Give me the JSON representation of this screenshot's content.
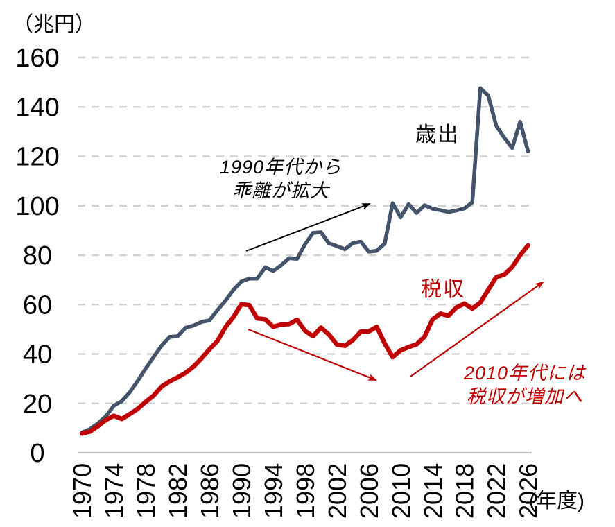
{
  "chart_data": {
    "type": "line",
    "unit_label": "（兆円）",
    "x_axis_unit_label": "(年度)",
    "xlim": [
      1970,
      2026
    ],
    "ylim": [
      0,
      160
    ],
    "grid": "horizontal-dashed",
    "legend_position": "inline-labels",
    "x_tick_years": [
      1970,
      1974,
      1978,
      1982,
      1986,
      1990,
      1994,
      1998,
      2002,
      2006,
      2010,
      2014,
      2018,
      2022,
      2026
    ],
    "y_ticks": [
      0,
      20,
      40,
      60,
      80,
      100,
      120,
      140,
      160
    ],
    "years": [
      1970,
      1971,
      1972,
      1973,
      1974,
      1975,
      1976,
      1977,
      1978,
      1979,
      1980,
      1981,
      1982,
      1983,
      1984,
      1985,
      1986,
      1987,
      1988,
      1989,
      1990,
      1991,
      1992,
      1993,
      1994,
      1995,
      1996,
      1997,
      1998,
      1999,
      2000,
      2001,
      2002,
      2003,
      2004,
      2005,
      2006,
      2007,
      2008,
      2009,
      2010,
      2011,
      2012,
      2013,
      2014,
      2015,
      2016,
      2017,
      2018,
      2019,
      2020,
      2021,
      2022,
      2023,
      2024,
      2025,
      2026
    ],
    "series": [
      {
        "name": "歳出",
        "color": "#44546A",
        "values": [
          8.2,
          9.6,
          11.9,
          14.8,
          19.1,
          20.9,
          24.5,
          29.1,
          34.1,
          38.8,
          43.4,
          46.9,
          47.2,
          50.6,
          51.5,
          53.0,
          53.6,
          57.7,
          61.5,
          65.9,
          69.3,
          70.5,
          70.5,
          75.1,
          73.6,
          75.9,
          78.8,
          78.5,
          84.4,
          89.0,
          89.3,
          84.8,
          83.7,
          82.4,
          84.9,
          85.5,
          81.4,
          81.8,
          84.7,
          101.0,
          95.3,
          100.7,
          97.1,
          100.2,
          98.8,
          98.2,
          97.5,
          98.1,
          98.9,
          101.4,
          147.6,
          144.6,
          132.4,
          127.6,
          123.4,
          134.0,
          122.0
        ]
      },
      {
        "name": "税収",
        "color": "#C00000",
        "values": [
          7.8,
          8.6,
          10.8,
          13.3,
          15.0,
          13.7,
          15.7,
          17.8,
          20.6,
          23.2,
          26.8,
          28.9,
          30.5,
          32.4,
          34.9,
          38.2,
          41.9,
          45.2,
          50.8,
          54.9,
          60.1,
          59.8,
          54.4,
          54.1,
          51.0,
          51.9,
          52.1,
          53.9,
          49.4,
          47.2,
          50.7,
          47.9,
          43.8,
          43.3,
          45.6,
          49.1,
          49.1,
          51.0,
          44.3,
          38.7,
          41.5,
          42.8,
          43.9,
          47.0,
          54.0,
          56.3,
          55.5,
          58.8,
          60.4,
          58.4,
          60.8,
          66.0,
          71.1,
          72.1,
          75.2,
          80.0,
          84.0
        ]
      }
    ],
    "annotations": [
      {
        "id": "divergence",
        "line1": "1990年代から",
        "line2": "乖離が拡大",
        "color": "#000000",
        "arrow_direction": "up-right"
      },
      {
        "id": "tax-increase",
        "line1": "2010年代には",
        "line2": "税収が増加へ",
        "color": "#C00000",
        "arrow_direction": "up-right"
      }
    ],
    "colors": {
      "expenditure_line": "#44546A",
      "tax_line": "#C00000",
      "gridline": "#D2D2D2",
      "zero_axis": "#BBBBBB",
      "tick_text": "#000000"
    }
  }
}
